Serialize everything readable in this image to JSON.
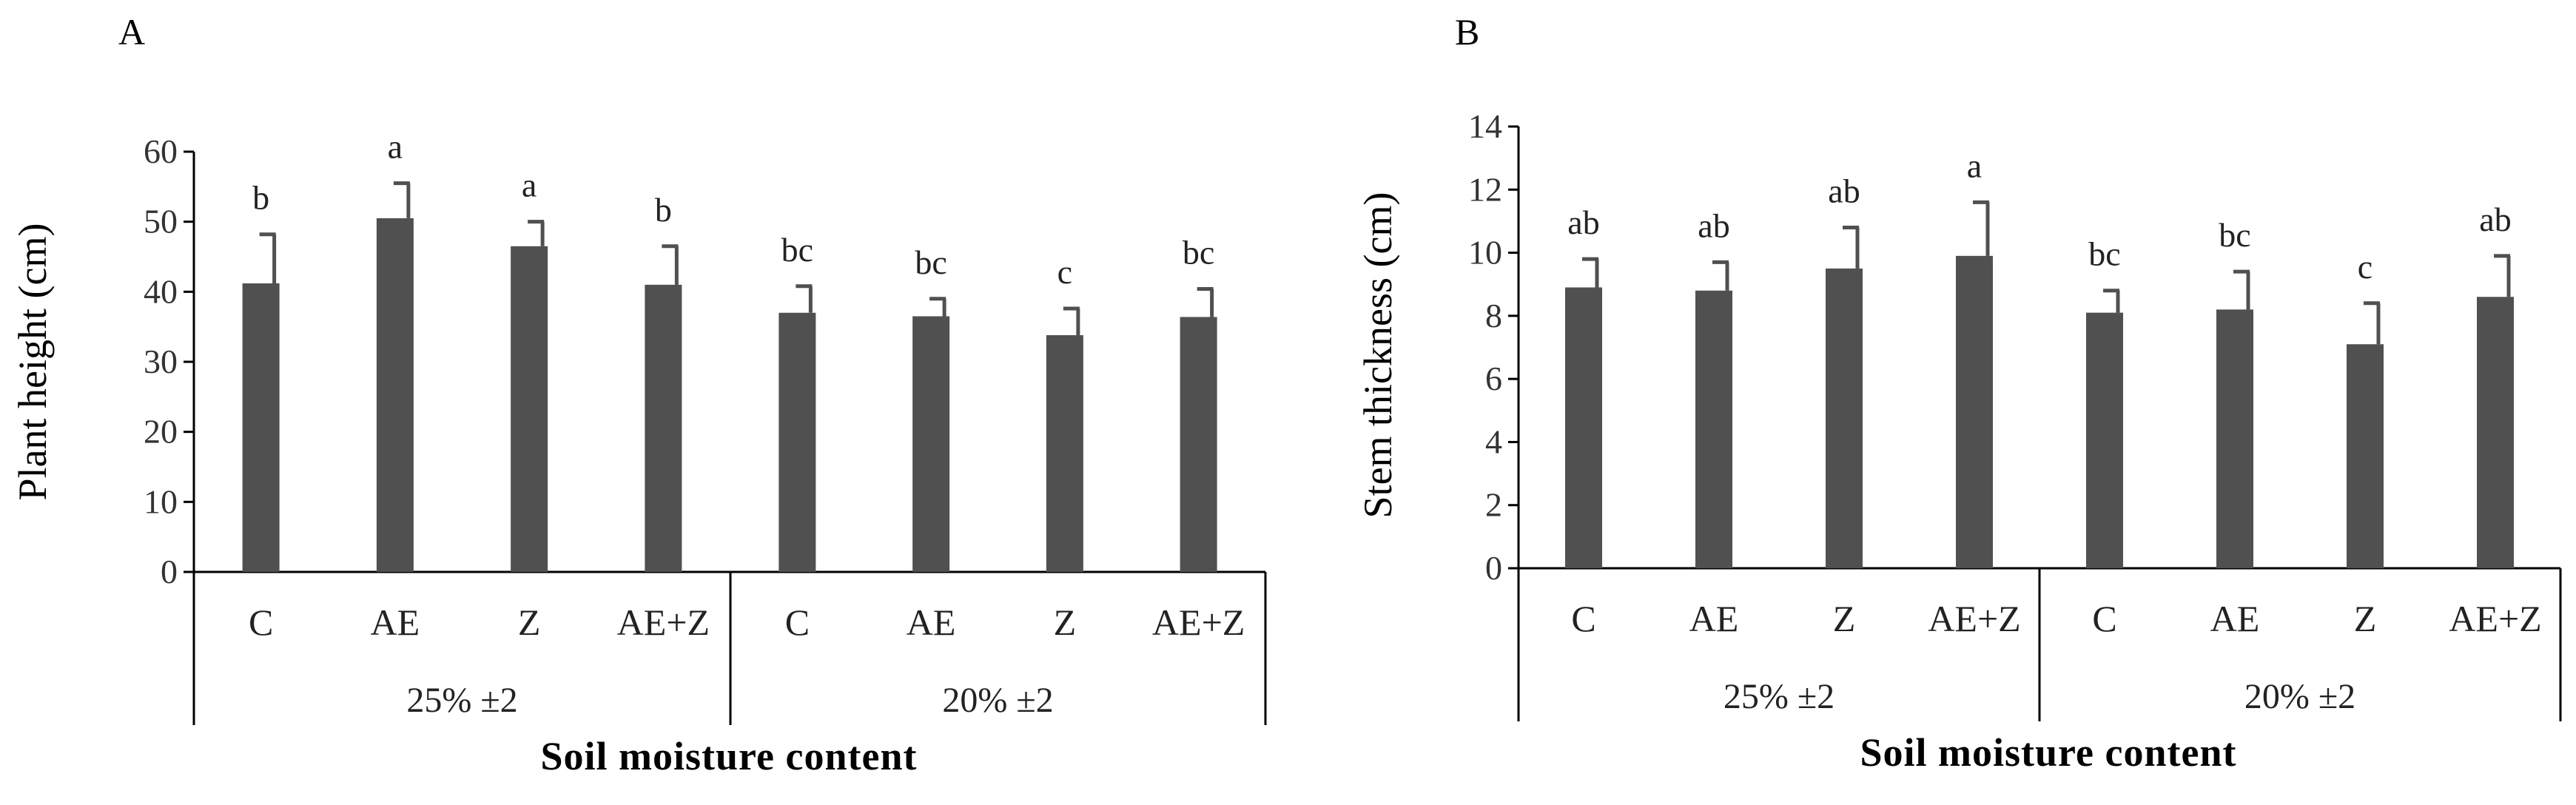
{
  "chart_data": [
    {
      "type": "bar",
      "panel_label": "A",
      "categories": [
        "C",
        "AE",
        "Z",
        "AE+Z",
        "C",
        "AE",
        "Z",
        "AE+Z"
      ],
      "groups": [
        {
          "label": "25% ±2",
          "categories": [
            "C",
            "AE",
            "Z",
            "AE+Z"
          ]
        },
        {
          "label": "20% ±2",
          "categories": [
            "C",
            "AE",
            "Z",
            "AE+Z"
          ]
        }
      ],
      "values": [
        41.2,
        50.5,
        46.5,
        41.0,
        37.0,
        36.5,
        33.8,
        36.4
      ],
      "errors": [
        7.0,
        5.0,
        3.5,
        5.5,
        3.8,
        2.5,
        3.8,
        4.0
      ],
      "significance": [
        "b",
        "a",
        "a",
        "b",
        "bc",
        "bc",
        "c",
        "bc"
      ],
      "ylabel": "Plant height (cm)",
      "xlabel": "Soil moisture content",
      "ylim": [
        0,
        60
      ],
      "yticks": [
        0,
        10,
        20,
        30,
        40,
        50,
        60
      ],
      "grid": false
    },
    {
      "type": "bar",
      "panel_label": "B",
      "categories": [
        "C",
        "AE",
        "Z",
        "AE+Z",
        "C",
        "AE",
        "Z",
        "AE+Z"
      ],
      "groups": [
        {
          "label": "25% ±2",
          "categories": [
            "C",
            "AE",
            "Z",
            "AE+Z"
          ]
        },
        {
          "label": "20% ±2",
          "categories": [
            "C",
            "AE",
            "Z",
            "AE+Z"
          ]
        }
      ],
      "values": [
        8.9,
        8.8,
        9.5,
        9.9,
        8.1,
        8.2,
        7.1,
        8.6
      ],
      "errors": [
        0.9,
        0.9,
        1.3,
        1.7,
        0.7,
        1.2,
        1.3,
        1.3
      ],
      "significance": [
        "ab",
        "ab",
        "ab",
        "a",
        "bc",
        "bc",
        "c",
        "ab"
      ],
      "ylabel": "Stem thickness (cm)",
      "xlabel": "Soil moisture content",
      "ylim": [
        0,
        14
      ],
      "yticks": [
        0,
        2,
        4,
        6,
        8,
        10,
        12,
        14
      ],
      "grid": false
    }
  ]
}
